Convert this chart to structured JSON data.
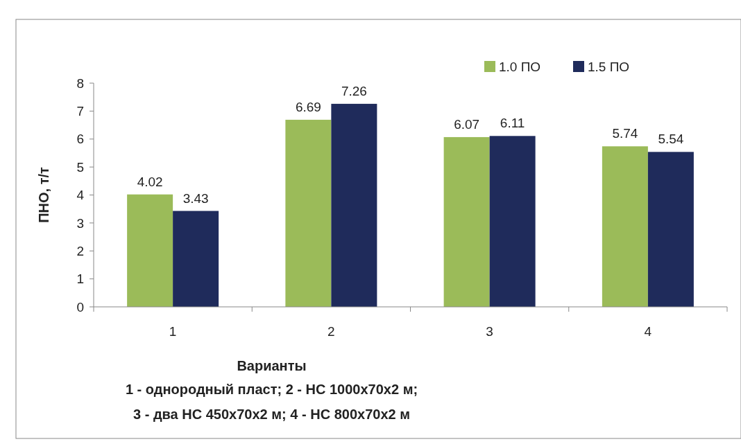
{
  "chart_data": {
    "type": "bar",
    "categories": [
      "1",
      "2",
      "3",
      "4"
    ],
    "series": [
      {
        "name": "1.0 ПО",
        "color": "#9bbb59",
        "values": [
          4.02,
          6.69,
          6.07,
          5.74
        ]
      },
      {
        "name": "1.5 ПО",
        "color": "#1f2b5b",
        "values": [
          3.43,
          7.26,
          6.11,
          5.54
        ]
      }
    ],
    "ylim": [
      0,
      8
    ],
    "yticks": [
      0,
      1,
      2,
      3,
      4,
      5,
      6,
      7,
      8
    ],
    "ylabel": "ПНО, т/т",
    "xlabel": "Варианты",
    "annotations": [
      "1 - однородный пласт; 2 - НС 1000х70х2  м;",
      "3 - два НС 450х70х2  м; 4 - НС 800х70х2  м"
    ],
    "data_labels": true,
    "legend": "top right",
    "grid": false
  }
}
